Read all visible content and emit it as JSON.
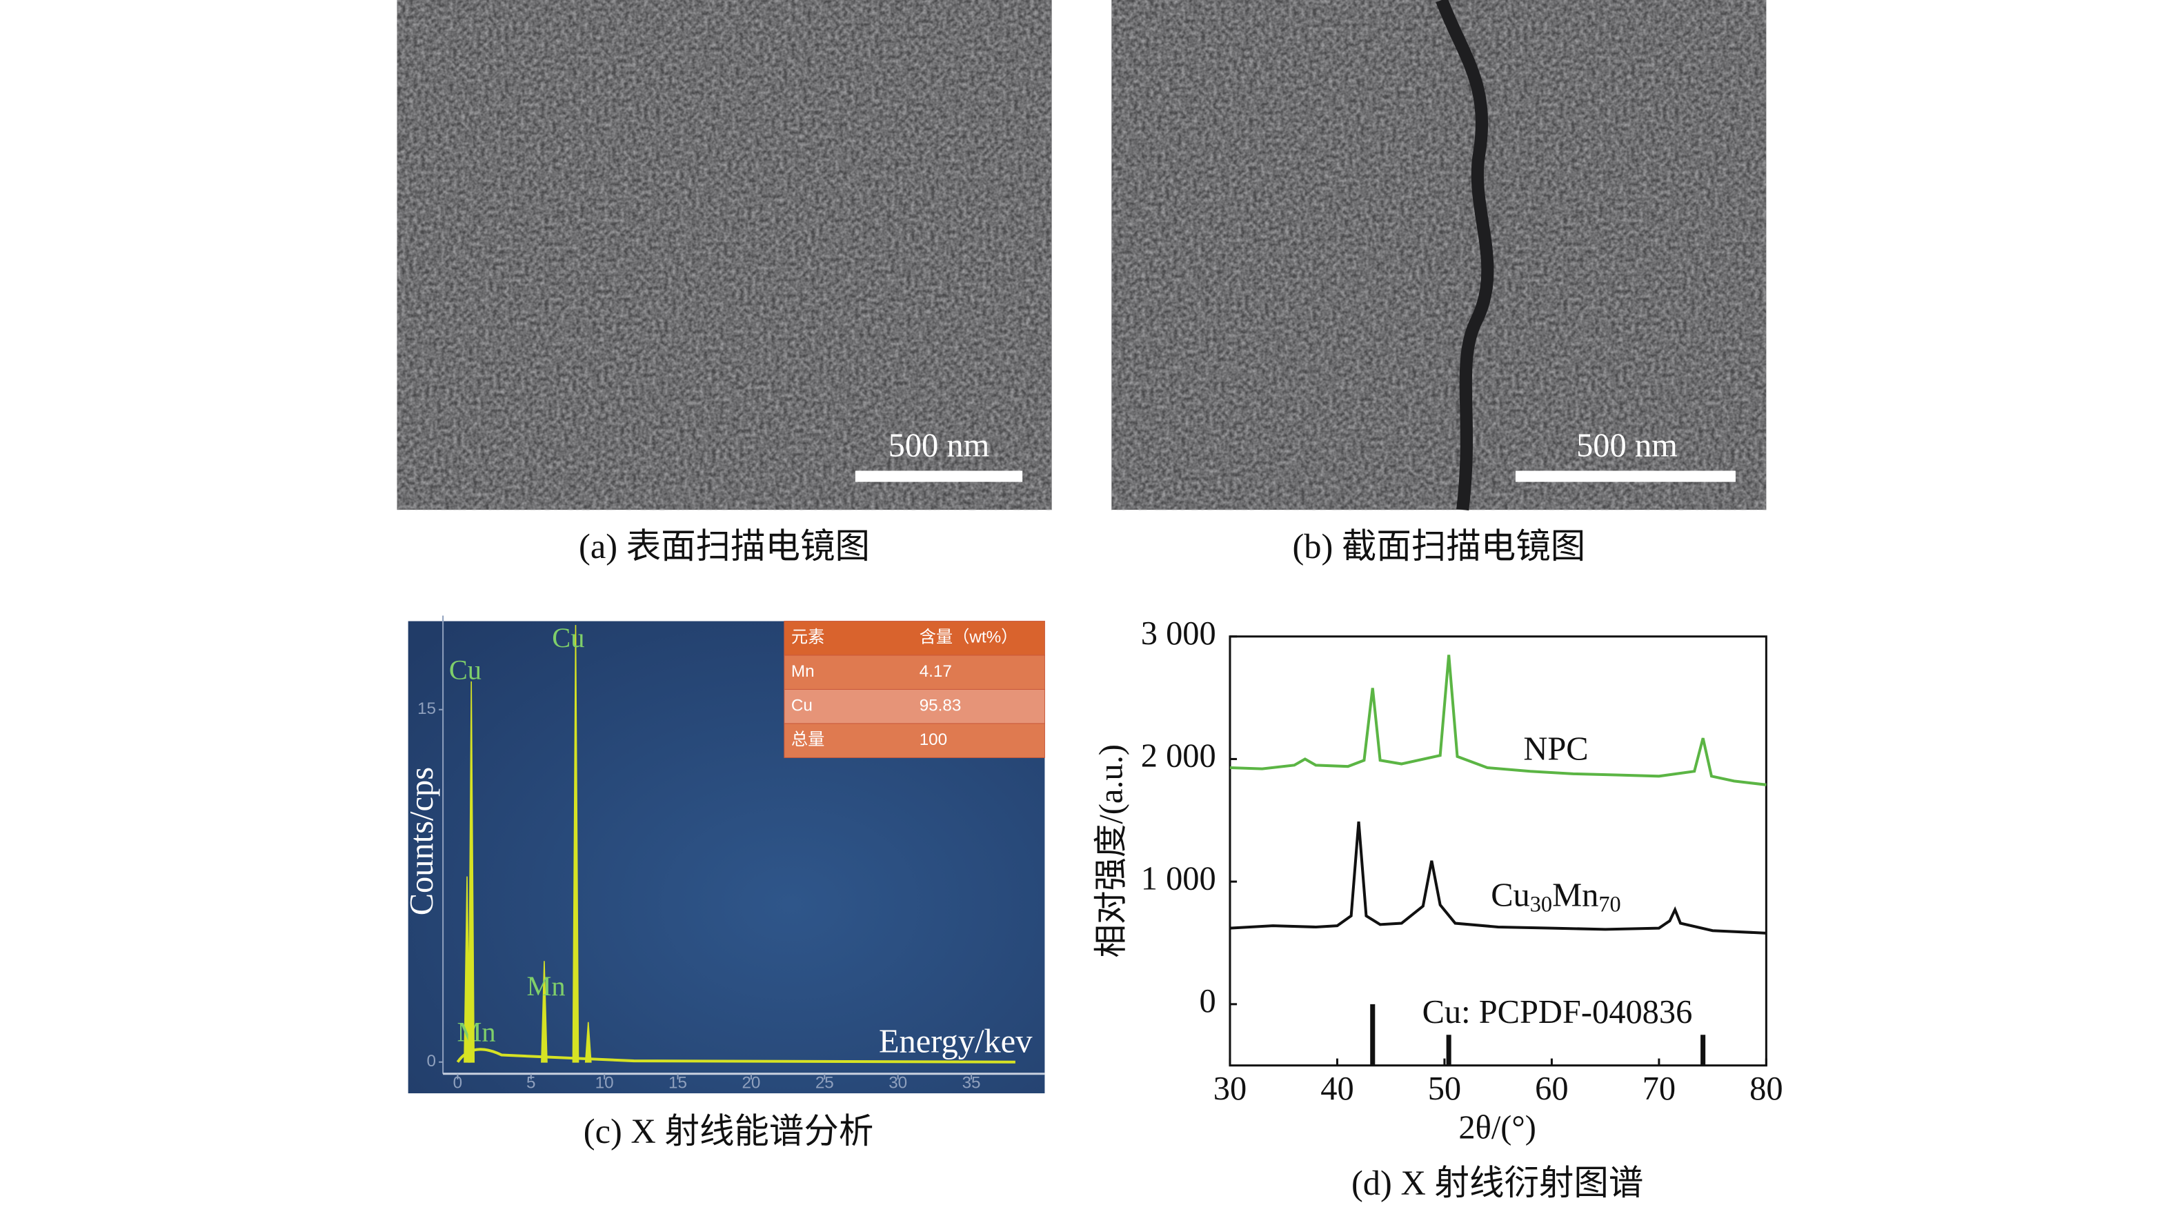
{
  "panels": [
    {
      "caption": "(a) 表面扫描电镜图",
      "scale_bar": "500 nm"
    },
    {
      "caption": "(b) 截面扫描电镜图",
      "scale_bar": "500 nm"
    },
    {
      "caption": "(c) X 射线能谱分析",
      "chart_data": {
        "type": "spectrum",
        "x_label": "Energy/kev",
        "y_label": "Counts/cps",
        "xlim": [
          -1,
          40
        ],
        "ylim": [
          -0.5,
          19
        ],
        "xticks": [
          0,
          5,
          10,
          15,
          20,
          25,
          30,
          35
        ],
        "yticks": [
          0,
          15
        ],
        "color": "#d6e224",
        "label_color": "#7fcf6a",
        "peaks": [
          {
            "label": "Mn",
            "energy": 0.64,
            "counts": 7.9
          },
          {
            "label": "Cu",
            "energy": 0.93,
            "counts": 16.2
          },
          {
            "label": "Mn",
            "energy": 5.9,
            "counts": 4.3
          },
          {
            "label": "Cu",
            "energy": 8.04,
            "counts": 18.6
          },
          {
            "energy": 8.9,
            "counts": 1.7
          }
        ],
        "table": {
          "header": [
            "元素",
            "含量（wt%）"
          ],
          "rows": [
            [
              "Mn",
              4.17
            ],
            [
              "Cu",
              95.83
            ],
            [
              "总量",
              100
            ]
          ]
        }
      }
    },
    {
      "caption": "(d) X 射线衍射图谱",
      "chart_data": {
        "type": "line",
        "x_label": "2θ/(°)",
        "y_label": "相对强度/(a.u.)",
        "xlim": [
          30,
          80
        ],
        "ylim": [
          -500,
          3000
        ],
        "xticks": [
          30,
          40,
          50,
          60,
          70,
          80
        ],
        "yticks": [
          {
            "value": 0,
            "label": "0"
          },
          {
            "value": 1000,
            "label": "1 000"
          },
          {
            "value": 2000,
            "label": "2 000"
          },
          {
            "value": 3000,
            "label": "3 000"
          }
        ],
        "series": [
          {
            "name": "NPC",
            "color": "#5bb544",
            "x": [
              30,
              33,
              36,
              37,
              38,
              41,
              42.5,
              43.3,
              44,
              46,
              49.6,
              50.4,
              51.2,
              54,
              58,
              62,
              66,
              70,
              73.3,
              74.1,
              74.9,
              77,
              80
            ],
            "values": [
              1930,
              1920,
              1950,
              2000,
              1950,
              1940,
              1990,
              2580,
              1990,
              1960,
              2030,
              2850,
              2020,
              1930,
              1900,
              1880,
              1870,
              1860,
              1900,
              2170,
              1860,
              1820,
              1790
            ]
          },
          {
            "name": "Cu30Mn70",
            "color": "#111111",
            "x": [
              30,
              34,
              38,
              40,
              41.3,
              42,
              42.7,
              44,
              46,
              48,
              48.8,
              49.6,
              51,
              55,
              60,
              65,
              70,
              71,
              71.5,
              72,
              75,
              80
            ],
            "values": [
              620,
              640,
              630,
              640,
              720,
              1490,
              720,
              650,
              660,
              800,
              1170,
              810,
              660,
              630,
              620,
              610,
              620,
              680,
              770,
              660,
              600,
              580
            ]
          }
        ],
        "reference": {
          "label": "Cu: PCPDF-040836",
          "positions": [
            43.3,
            50.4,
            74.1
          ],
          "values": [
            0,
            -250,
            -250
          ]
        }
      }
    }
  ]
}
